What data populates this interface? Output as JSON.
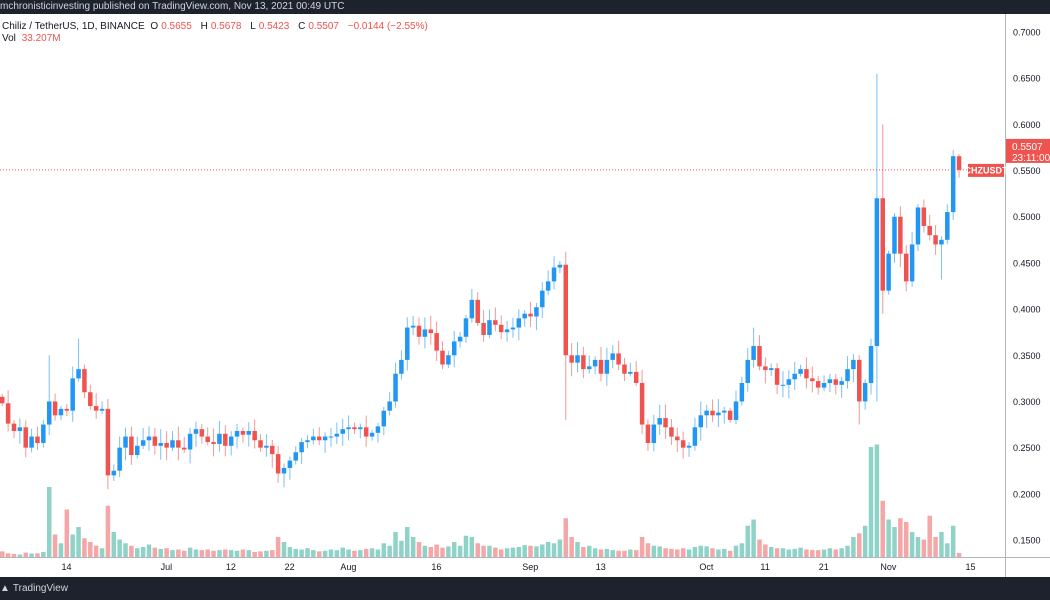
{
  "header": {
    "published": "mchronisticinvesting published on TradingView.com, Nov 13, 2021 00:49 UTC"
  },
  "legend": {
    "symbol": "Chiliz / TetherUS, 1D, BINANCE",
    "o_label": "O",
    "o": "0.5655",
    "h_label": "H",
    "h": "0.5678",
    "l_label": "L",
    "l": "0.5423",
    "c_label": "C",
    "c": "0.5507",
    "change": "−0.0144 (−2.55%)",
    "vol_label": "Vol",
    "vol": "33.207M"
  },
  "last_price": {
    "ticker": "CHZUSDT",
    "price": "0.5507",
    "countdown": "23:11:00"
  },
  "footer": {
    "brand": "TradingView"
  },
  "colors": {
    "up": "#2196f3",
    "down": "#ef5350",
    "vol_up": "#8fd3c8",
    "vol_down": "#f5a6a6",
    "dark": "#1e222d"
  },
  "chart_data": {
    "type": "candlestick",
    "title": "Chiliz / TetherUS, 1D, BINANCE",
    "start_date": "2021-06-03",
    "first_open": 0.305,
    "ylim": [
      0.13,
      0.72
    ],
    "y_ticks": [
      "0.7000",
      "0.6500",
      "0.6000",
      "0.5500",
      "0.5000",
      "0.4500",
      "0.4000",
      "0.3500",
      "0.3000",
      "0.2500",
      "0.2000",
      "0.1500"
    ],
    "x_ticks": [
      {
        "label": "14",
        "date": "2021-06-14"
      },
      {
        "label": "Jul",
        "date": "2021-07-01"
      },
      {
        "label": "12",
        "date": "2021-07-12"
      },
      {
        "label": "22",
        "date": "2021-07-22"
      },
      {
        "label": "Aug",
        "date": "2021-08-01"
      },
      {
        "label": "16",
        "date": "2021-08-16"
      },
      {
        "label": "Sep",
        "date": "2021-09-01"
      },
      {
        "label": "13",
        "date": "2021-09-13"
      },
      {
        "label": "Oct",
        "date": "2021-10-01"
      },
      {
        "label": "11",
        "date": "2021-10-11"
      },
      {
        "label": "21",
        "date": "2021-10-21"
      },
      {
        "label": "Nov",
        "date": "2021-11-01"
      },
      {
        "label": "15",
        "date": "2021-11-15"
      }
    ],
    "close": [
      0.298,
      0.276,
      0.268,
      0.272,
      0.25,
      0.262,
      0.255,
      0.275,
      0.3,
      0.285,
      0.292,
      0.29,
      0.325,
      0.335,
      0.31,
      0.295,
      0.29,
      0.292,
      0.22,
      0.225,
      0.25,
      0.262,
      0.242,
      0.252,
      0.258,
      0.262,
      0.252,
      0.255,
      0.25,
      0.258,
      0.25,
      0.248,
      0.265,
      0.27,
      0.262,
      0.256,
      0.254,
      0.265,
      0.252,
      0.262,
      0.268,
      0.264,
      0.268,
      0.258,
      0.25,
      0.252,
      0.243,
      0.222,
      0.228,
      0.236,
      0.245,
      0.256,
      0.258,
      0.262,
      0.258,
      0.262,
      0.262,
      0.265,
      0.27,
      0.272,
      0.27,
      0.272,
      0.262,
      0.266,
      0.273,
      0.29,
      0.3,
      0.33,
      0.345,
      0.38,
      0.382,
      0.37,
      0.378,
      0.374,
      0.355,
      0.34,
      0.35,
      0.365,
      0.37,
      0.39,
      0.41,
      0.385,
      0.372,
      0.388,
      0.383,
      0.375,
      0.378,
      0.38,
      0.39,
      0.395,
      0.392,
      0.402,
      0.42,
      0.43,
      0.445,
      0.448,
      0.35,
      0.342,
      0.35,
      0.335,
      0.338,
      0.345,
      0.33,
      0.345,
      0.352,
      0.34,
      0.33,
      0.332,
      0.32,
      0.275,
      0.255,
      0.275,
      0.282,
      0.272,
      0.262,
      0.258,
      0.25,
      0.252,
      0.272,
      0.285,
      0.29,
      0.285,
      0.288,
      0.29,
      0.28,
      0.3,
      0.32,
      0.345,
      0.36,
      0.338,
      0.334,
      0.336,
      0.318,
      0.318,
      0.324,
      0.33,
      0.335,
      0.325,
      0.322,
      0.315,
      0.32,
      0.324,
      0.318,
      0.322,
      0.335,
      0.345,
      0.3,
      0.32,
      0.36,
      0.52,
      0.42,
      0.46,
      0.5,
      0.46,
      0.43,
      0.47,
      0.51,
      0.49,
      0.48,
      0.47,
      0.475,
      0.505,
      0.5655,
      0.5507
    ],
    "overrides": [
      {
        "date": "2021-06-11",
        "high": 0.35
      },
      {
        "date": "2021-06-16",
        "high": 0.368
      },
      {
        "date": "2021-06-21",
        "low": 0.205
      },
      {
        "date": "2021-09-06",
        "high": 0.452
      },
      {
        "date": "2021-09-07",
        "low": 0.28
      },
      {
        "date": "2021-10-09",
        "high": 0.38
      },
      {
        "date": "2021-10-27",
        "low": 0.275
      },
      {
        "date": "2021-10-30",
        "high": 0.655,
        "low": 0.3
      },
      {
        "date": "2021-10-31",
        "high": 0.6,
        "low": 0.395
      },
      {
        "date": "2021-11-10",
        "low": 0.432
      },
      {
        "date": "2021-11-12",
        "high": 0.572
      },
      {
        "date": "2021-11-13",
        "open": 0.5655,
        "high": 0.5678,
        "low": 0.5423
      }
    ],
    "volume_unit": "M",
    "volume": [
      45,
      30,
      25,
      20,
      35,
      28,
      30,
      40,
      560,
      180,
      110,
      380,
      180,
      240,
      150,
      120,
      90,
      70,
      410,
      200,
      140,
      110,
      90,
      70,
      80,
      100,
      75,
      65,
      70,
      55,
      60,
      50,
      75,
      60,
      55,
      60,
      50,
      55,
      60,
      55,
      50,
      60,
      55,
      40,
      45,
      50,
      55,
      160,
      120,
      80,
      65,
      60,
      70,
      55,
      45,
      50,
      60,
      55,
      75,
      60,
      50,
      55,
      65,
      70,
      60,
      110,
      90,
      200,
      130,
      240,
      160,
      120,
      90,
      80,
      100,
      75,
      85,
      120,
      90,
      170,
      160,
      110,
      90,
      90,
      75,
      60,
      70,
      75,
      80,
      95,
      90,
      85,
      100,
      120,
      110,
      140,
      310,
      160,
      120,
      80,
      90,
      70,
      60,
      65,
      55,
      50,
      50,
      60,
      55,
      160,
      110,
      90,
      85,
      70,
      65,
      60,
      70,
      60,
      80,
      90,
      85,
      70,
      60,
      65,
      50,
      90,
      110,
      250,
      300,
      140,
      100,
      80,
      70,
      70,
      60,
      65,
      75,
      60,
      55,
      55,
      60,
      70,
      60,
      70,
      90,
      160,
      190,
      250,
      880,
      900,
      450,
      300,
      240,
      310,
      280,
      200,
      160,
      140,
      330,
      160,
      200,
      110,
      250,
      33.207
    ]
  }
}
